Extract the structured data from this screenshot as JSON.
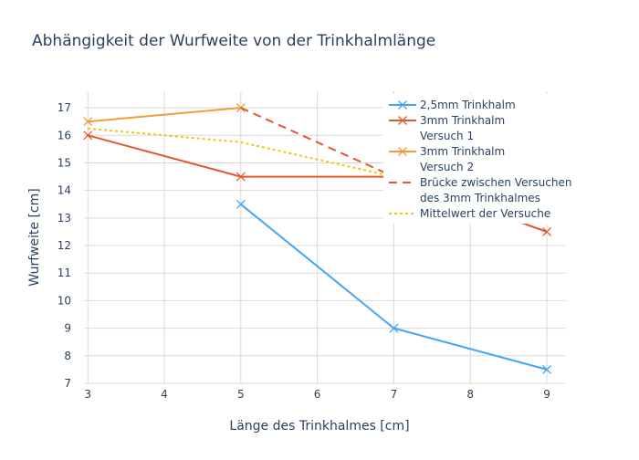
{
  "chart_data": {
    "type": "line",
    "title": "Abhängigkeit der Wurfweite von der Trinkhalmlänge",
    "xlabel": "Länge des Trinkhalmes [cm]",
    "ylabel": "Wurfweite [cm]",
    "xlim": [
      2.95,
      9.25
    ],
    "ylim": [
      7,
      17.6
    ],
    "x_ticks": [
      3,
      4,
      5,
      6,
      7,
      8,
      9
    ],
    "y_ticks": [
      7,
      8,
      9,
      10,
      11,
      12,
      13,
      14,
      15,
      16,
      17
    ],
    "grid": true,
    "legend_position": "top-right",
    "series": [
      {
        "name": "2,5mm Trinkhalm",
        "color": "#42a5f5",
        "dash": "solid",
        "marker": "x",
        "x": [
          5,
          7,
          9
        ],
        "y": [
          13.5,
          9,
          7.5
        ]
      },
      {
        "name": "3mm Trinkhalm Versuch 1",
        "legend_lines": [
          "3mm Trinkhalm",
          "Versuch 1"
        ],
        "color": "#e4572e",
        "dash": "solid",
        "marker": "x",
        "x": [
          3,
          5,
          7,
          9
        ],
        "y": [
          16,
          14.5,
          14.5,
          12.5
        ]
      },
      {
        "name": "3mm Trinkhalm Versuch 2",
        "legend_lines": [
          "3mm Trinkhalm",
          "Versuch 2"
        ],
        "color": "#f49a3c",
        "dash": "solid",
        "marker": "x",
        "x": [
          3,
          5
        ],
        "y": [
          16.5,
          17
        ]
      },
      {
        "name": "Brücke zwischen Versuchen des 3mm Trinkhalmes",
        "legend_lines": [
          "Brücke zwischen Versuchen",
          "des 3mm Trinkhalmes"
        ],
        "color": "#e4572e",
        "dash": "dash",
        "marker": "none",
        "x": [
          5,
          7
        ],
        "y": [
          17,
          14.5
        ]
      },
      {
        "name": "Mittelwert der Versuche",
        "color": "#f2c511",
        "dash": "dot",
        "marker": "none",
        "x": [
          3,
          4,
          5,
          7
        ],
        "y": [
          16.25,
          16,
          15.75,
          14.5
        ]
      }
    ]
  }
}
